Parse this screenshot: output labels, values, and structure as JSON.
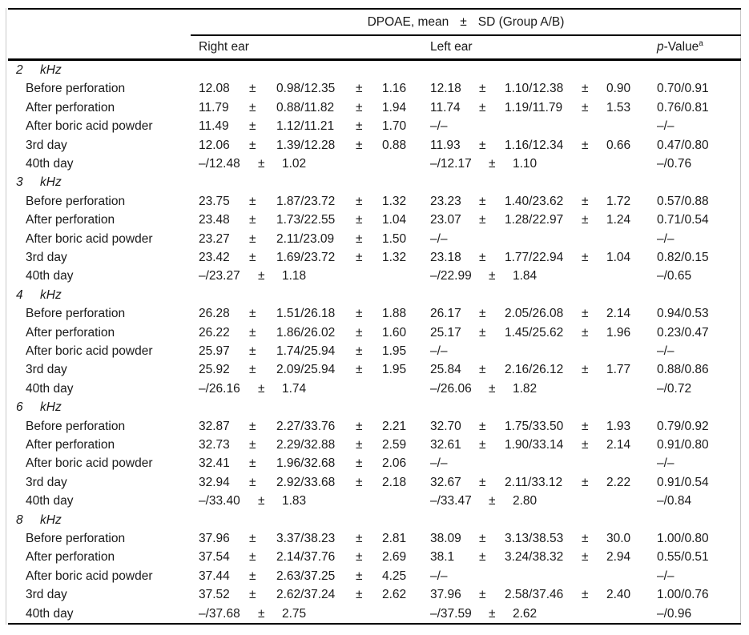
{
  "header": {
    "group_title_left": "DPOAE, mean",
    "group_title_pm": "±",
    "group_title_right": "SD (Group A/B)",
    "col_right": "Right ear",
    "col_left": "Left ear",
    "col_p_prefix": "p",
    "col_p_rest": "-Value",
    "col_p_sup": "a"
  },
  "sections": [
    {
      "freq": "2",
      "unit": "kHz",
      "rows": [
        {
          "label": "Before perforation",
          "right": [
            "12.08",
            "±",
            "0.98/12.35",
            "±",
            "1.16"
          ],
          "left": [
            "12.18",
            "±",
            "1.10/12.38",
            "±",
            "0.90"
          ],
          "p": "0.70/0.91"
        },
        {
          "label": "After perforation",
          "right": [
            "11.79",
            "±",
            "0.88/11.82",
            "±",
            "1.94"
          ],
          "left": [
            "11.74",
            "±",
            "1.19/11.79",
            "±",
            "1.53"
          ],
          "p": "0.76/0.81"
        },
        {
          "label": "After boric acid powder",
          "right": [
            "11.49",
            "±",
            "1.12/11.21",
            "±",
            "1.70"
          ],
          "left": [
            "–/–"
          ],
          "p": "–/–"
        },
        {
          "label": "3rd day",
          "right": [
            "12.06",
            "±",
            "1.39/12.28",
            "±",
            "0.88"
          ],
          "left": [
            "11.93",
            "±",
            "1.16/12.34",
            "±",
            "0.66"
          ],
          "p": "0.47/0.80"
        },
        {
          "label": "40th day",
          "right": [
            "–/12.48",
            "±",
            "1.02"
          ],
          "left": [
            "–/12.17",
            "±",
            "1.10"
          ],
          "p": "–/0.76"
        }
      ]
    },
    {
      "freq": "3",
      "unit": "kHz",
      "rows": [
        {
          "label": "Before perforation",
          "right": [
            "23.75",
            "±",
            "1.87/23.72",
            "±",
            "1.32"
          ],
          "left": [
            "23.23",
            "±",
            "1.40/23.62",
            "±",
            "1.72"
          ],
          "p": "0.57/0.88"
        },
        {
          "label": "After perforation",
          "right": [
            "23.48",
            "±",
            "1.73/22.55",
            "±",
            "1.04"
          ],
          "left": [
            "23.07",
            "±",
            "1.28/22.97",
            "±",
            "1.24"
          ],
          "p": "0.71/0.54"
        },
        {
          "label": "After boric acid powder",
          "right": [
            "23.27",
            "±",
            "2.11/23.09",
            "±",
            "1.50"
          ],
          "left": [
            "–/–"
          ],
          "p": "–/–"
        },
        {
          "label": "3rd day",
          "right": [
            "23.42",
            "±",
            "1.69/23.72",
            "±",
            "1.32"
          ],
          "left": [
            "23.18",
            "±",
            "1.77/22.94",
            "±",
            "1.04"
          ],
          "p": "0.82/0.15"
        },
        {
          "label": "40th day",
          "right": [
            "–/23.27",
            "±",
            "1.18"
          ],
          "left": [
            "–/22.99",
            "±",
            "1.84"
          ],
          "p": "–/0.65"
        }
      ]
    },
    {
      "freq": "4",
      "unit": "kHz",
      "rows": [
        {
          "label": "Before perforation",
          "right": [
            "26.28",
            "±",
            "1.51/26.18",
            "±",
            "1.88"
          ],
          "left": [
            "26.17",
            "±",
            "2.05/26.08",
            "±",
            "2.14"
          ],
          "p": "0.94/0.53"
        },
        {
          "label": "After perforation",
          "right": [
            "26.22",
            "±",
            "1.86/26.02",
            "±",
            "1.60"
          ],
          "left": [
            "25.17",
            "±",
            "1.45/25.62",
            "±",
            "1.96"
          ],
          "p": "0.23/0.47"
        },
        {
          "label": "After boric acid powder",
          "right": [
            "25.97",
            "±",
            "1.74/25.94",
            "±",
            "1.95"
          ],
          "left": [
            "–/–"
          ],
          "p": "–/–"
        },
        {
          "label": "3rd day",
          "right": [
            "25.92",
            "±",
            "2.09/25.94",
            "±",
            "1.95"
          ],
          "left": [
            "25.84",
            "±",
            "2.16/26.12",
            "±",
            "1.77"
          ],
          "p": "0.88/0.86"
        },
        {
          "label": "40th day",
          "right": [
            "–/26.16",
            "±",
            "1.74"
          ],
          "left": [
            "–/26.06",
            "±",
            "1.82"
          ],
          "p": "–/0.72"
        }
      ]
    },
    {
      "freq": "6",
      "unit": "kHz",
      "rows": [
        {
          "label": "Before perforation",
          "right": [
            "32.87",
            "±",
            "2.27/33.76",
            "±",
            "2.21"
          ],
          "left": [
            "32.70",
            "±",
            "1.75/33.50",
            "±",
            "1.93"
          ],
          "p": "0.79/0.92"
        },
        {
          "label": "After perforation",
          "right": [
            "32.73",
            "±",
            "2.29/32.88",
            "±",
            "2.59"
          ],
          "left": [
            "32.61",
            "±",
            "1.90/33.14",
            "±",
            "2.14"
          ],
          "p": "0.91/0.80"
        },
        {
          "label": "After boric acid powder",
          "right": [
            "32.41",
            "±",
            "1.96/32.68",
            "±",
            "2.06"
          ],
          "left": [
            "–/–"
          ],
          "p": "–/–"
        },
        {
          "label": "3rd day",
          "right": [
            "32.94",
            "±",
            "2.92/33.68",
            "±",
            "2.18"
          ],
          "left": [
            "32.67",
            "±",
            "2.11/33.12",
            "±",
            "2.22"
          ],
          "p": "0.91/0.54"
        },
        {
          "label": "40th day",
          "right": [
            "–/33.40",
            "±",
            "1.83"
          ],
          "left": [
            "–/33.47",
            "±",
            "2.80"
          ],
          "p": "–/0.84"
        }
      ]
    },
    {
      "freq": "8",
      "unit": "kHz",
      "rows": [
        {
          "label": "Before perforation",
          "right": [
            "37.96",
            "±",
            "3.37/38.23",
            "±",
            "2.81"
          ],
          "left": [
            "38.09",
            "±",
            "3.13/38.53",
            "±",
            "30.0"
          ],
          "p": "1.00/0.80"
        },
        {
          "label": "After perforation",
          "right": [
            "37.54",
            "±",
            "2.14/37.76",
            "±",
            "2.69"
          ],
          "left": [
            "38.1",
            "±",
            "3.24/38.32",
            "±",
            "2.94"
          ],
          "p": "0.55/0.51"
        },
        {
          "label": "After boric acid powder",
          "right": [
            "37.44",
            "±",
            "2.63/37.25",
            "±",
            "4.25"
          ],
          "left": [
            "–/–"
          ],
          "p": "–/–"
        },
        {
          "label": "3rd day",
          "right": [
            "37.52",
            "±",
            "2.62/37.24",
            "±",
            "2.62"
          ],
          "left": [
            "37.96",
            "±",
            "2.58/37.46",
            "±",
            "2.40"
          ],
          "p": "1.00/0.76"
        },
        {
          "label": "40th day",
          "right": [
            "–/37.68",
            "±",
            "2.75"
          ],
          "left": [
            "–/37.59",
            "±",
            "2.62"
          ],
          "p": "–/0.96"
        }
      ]
    }
  ]
}
